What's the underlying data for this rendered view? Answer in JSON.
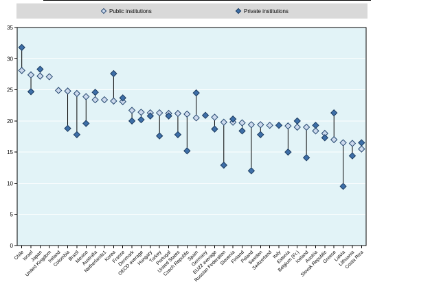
{
  "legend": {
    "background_color": "#d9d9d9",
    "items": [
      {
        "label": "Public institutions",
        "marker": "light-diamond",
        "fill": "#ccd9ed",
        "stroke": "#24466e"
      },
      {
        "label": "Private institutions",
        "marker": "dark-diamond",
        "fill": "#3e6fa8",
        "stroke": "#1a3a5f"
      }
    ]
  },
  "chart_data": {
    "type": "scatter",
    "title": "",
    "xlabel": "",
    "ylabel": "",
    "ylim": [
      0,
      35
    ],
    "ytick_step": 5,
    "grid": true,
    "gridline_color": "#ffffff",
    "plot_background": "#e2f3f7",
    "plot_border_color": "#000000",
    "legend_position": "top",
    "connector_lines": true,
    "categories": [
      "Chile",
      "Israel",
      "Japan",
      "United Kingdom",
      "Ireland",
      "Colombia",
      "Brazil",
      "Mexico",
      "Australia",
      "Netherlands1",
      "Korea",
      "France",
      "Denmark",
      "OECD average",
      "Hungary",
      "Turkey",
      "Portugal",
      "United States",
      "Czech Republic",
      "Spain",
      "Germany",
      "EU22 average",
      "Russian Federation",
      "Slovenia",
      "Finland",
      "Poland",
      "Sweden",
      "Switzerland",
      "Italy",
      "Estonia",
      "Belgium (Fr.)",
      "Iceland",
      "Austria",
      "Slovak Republic",
      "Greece",
      "Latvia",
      "Lithuania",
      "Costa Rica"
    ],
    "series": [
      {
        "name": "Public institutions",
        "marker": "light-diamond",
        "fill": "#ccd9ed",
        "stroke": "#24466e",
        "values": [
          28.1,
          27.4,
          27.2,
          27.1,
          24.9,
          24.8,
          24.4,
          23.9,
          23.4,
          23.4,
          23.2,
          23.1,
          21.7,
          21.4,
          21.3,
          21.3,
          21.2,
          21.2,
          21.1,
          20.5,
          null,
          20.6,
          19.8,
          19.8,
          19.7,
          19.4,
          19.4,
          19.3,
          null,
          19.2,
          19.0,
          19.0,
          18.4,
          18.0,
          17.0,
          16.5,
          16.4,
          15.5
        ]
      },
      {
        "name": "Private institutions",
        "marker": "dark-diamond",
        "fill": "#3e6fa8",
        "stroke": "#1a3a5f",
        "values": [
          31.8,
          24.7,
          28.3,
          null,
          null,
          18.8,
          17.8,
          19.6,
          24.6,
          null,
          27.6,
          23.7,
          20.0,
          20.2,
          20.8,
          17.6,
          20.8,
          17.8,
          15.2,
          24.5,
          20.9,
          18.7,
          12.9,
          20.3,
          18.4,
          12.0,
          17.8,
          null,
          19.3,
          15.0,
          20.0,
          14.1,
          19.3,
          17.3,
          21.3,
          9.5,
          14.4,
          16.5
        ]
      }
    ],
    "yticks": [
      0,
      5,
      10,
      15,
      20,
      25,
      30,
      35
    ]
  }
}
